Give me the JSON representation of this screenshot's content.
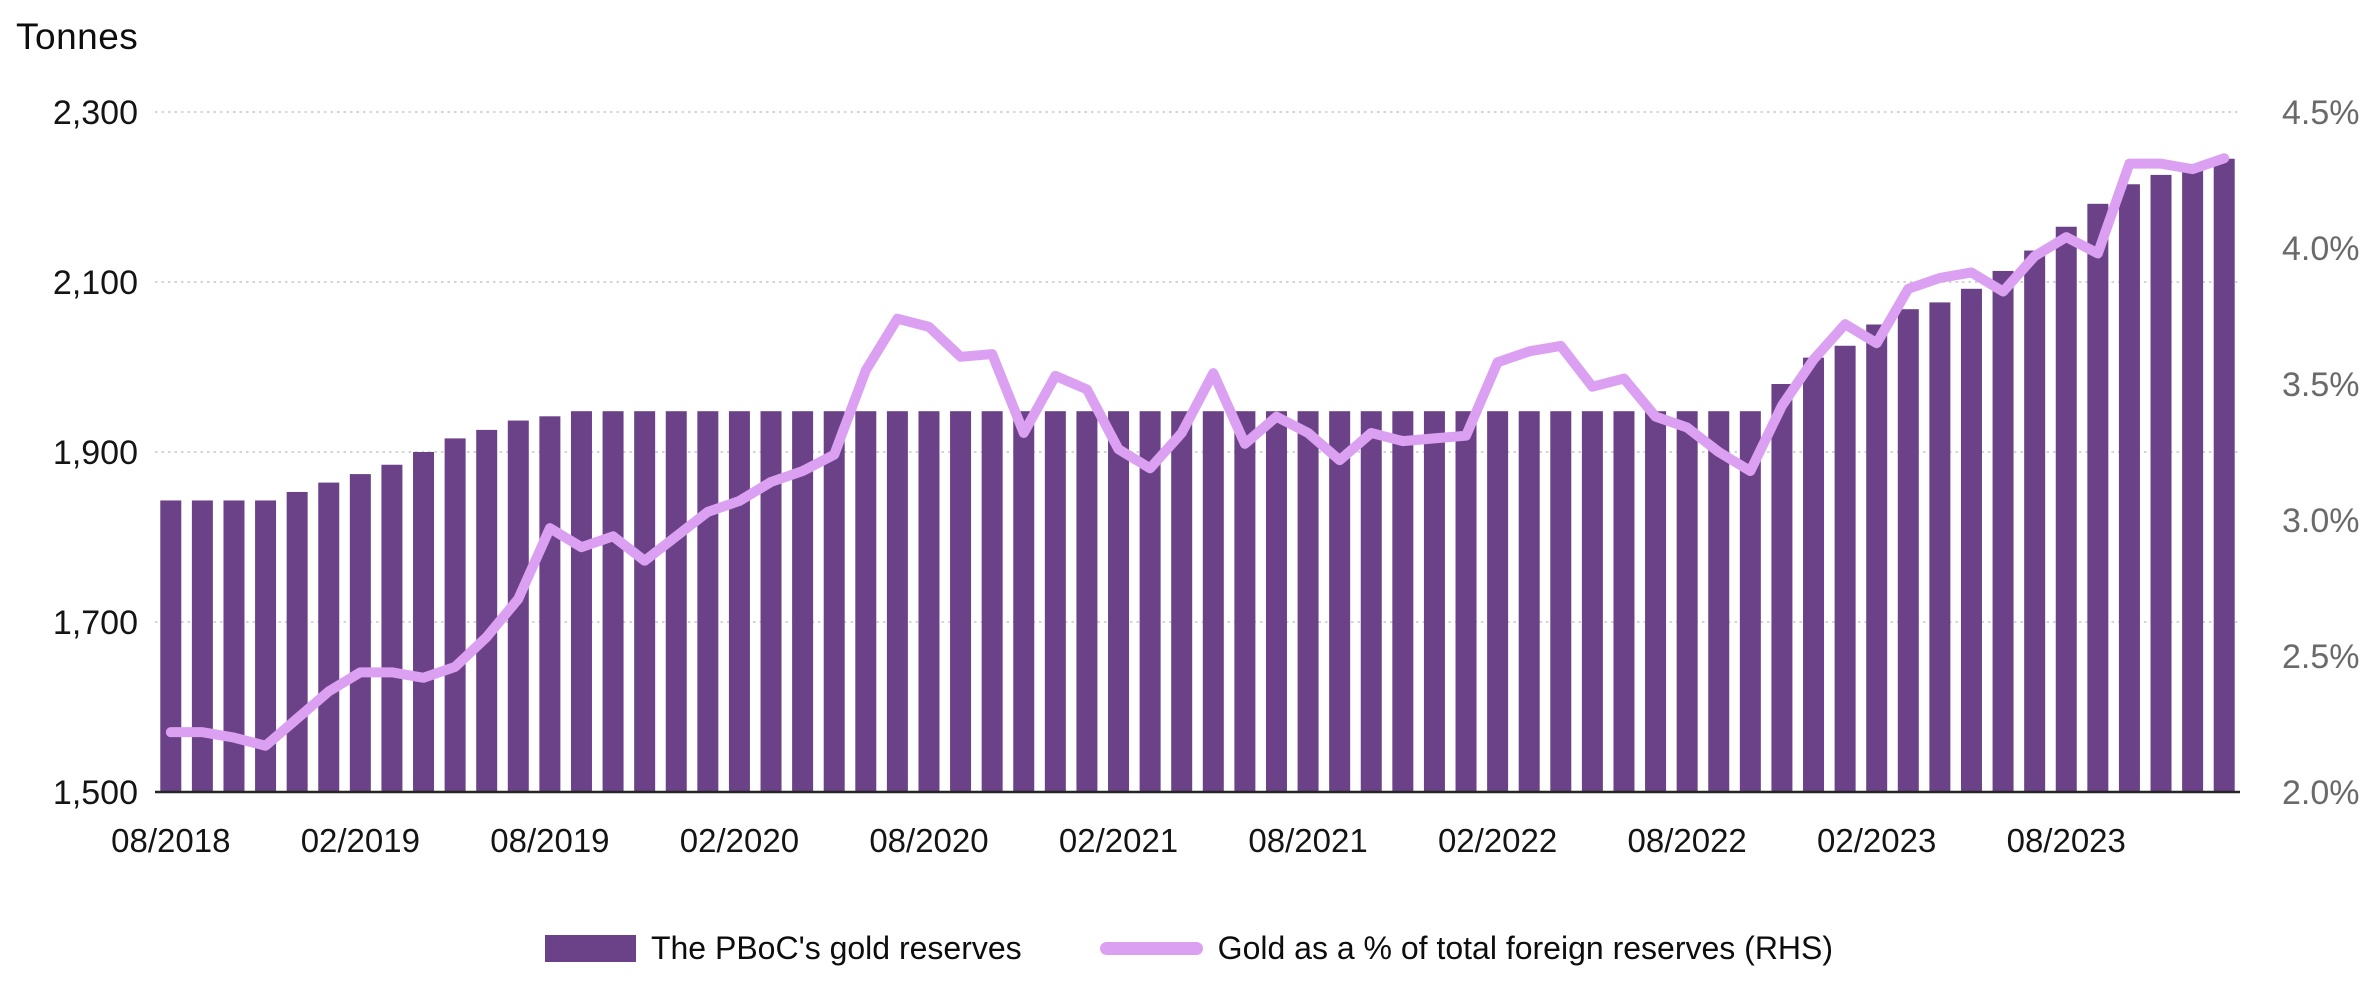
{
  "title": {
    "unit_label": "Tonnes"
  },
  "colors": {
    "bar": "#6B4287",
    "line": "#DCA0F2",
    "gridline": "#C6C6C6",
    "axis_baseline": "#262626",
    "left_tick_text": "#141414",
    "right_tick_text": "#6A6A6A",
    "x_tick_text": "#141414"
  },
  "chart_data": {
    "type": "combo-bar-line",
    "grid": "horizontal-dashed",
    "legend_position": "bottom",
    "categories": [
      "08/2018",
      "09/2018",
      "10/2018",
      "11/2018",
      "12/2018",
      "01/2019",
      "02/2019",
      "03/2019",
      "04/2019",
      "05/2019",
      "06/2019",
      "07/2019",
      "08/2019",
      "09/2019",
      "10/2019",
      "11/2019",
      "12/2019",
      "01/2020",
      "02/2020",
      "03/2020",
      "04/2020",
      "05/2020",
      "06/2020",
      "07/2020",
      "08/2020",
      "09/2020",
      "10/2020",
      "11/2020",
      "12/2020",
      "01/2021",
      "02/2021",
      "03/2021",
      "04/2021",
      "05/2021",
      "06/2021",
      "07/2021",
      "08/2021",
      "09/2021",
      "10/2021",
      "11/2021",
      "12/2021",
      "01/2022",
      "02/2022",
      "03/2022",
      "04/2022",
      "05/2022",
      "06/2022",
      "07/2022",
      "08/2022",
      "09/2022",
      "10/2022",
      "11/2022",
      "12/2022",
      "01/2023",
      "02/2023",
      "03/2023",
      "04/2023",
      "05/2023",
      "06/2023",
      "07/2023",
      "08/2023",
      "09/2023",
      "10/2023",
      "11/2023",
      "12/2023",
      "01/2024"
    ],
    "series": [
      {
        "name": "The PBoC's gold reserves",
        "type": "bar",
        "axis": "left",
        "values": [
          1843,
          1843,
          1843,
          1843,
          1853,
          1864,
          1874,
          1885,
          1900,
          1916,
          1926,
          1937,
          1942,
          1948,
          1948,
          1948,
          1948,
          1948,
          1948,
          1948,
          1948,
          1948,
          1948,
          1948,
          1948,
          1948,
          1948,
          1948,
          1948,
          1948,
          1948,
          1948,
          1948,
          1948,
          1948,
          1948,
          1948,
          1948,
          1948,
          1948,
          1948,
          1948,
          1948,
          1948,
          1948,
          1948,
          1948,
          1948,
          1948,
          1948,
          1948,
          1980,
          2011,
          2025,
          2050,
          2068,
          2076,
          2092,
          2113,
          2137,
          2165,
          2192,
          2215,
          2226,
          2235,
          2245
        ]
      },
      {
        "name": "Gold as a % of total foreign reserves (RHS)",
        "type": "line",
        "axis": "right",
        "values": [
          2.22,
          2.22,
          2.2,
          2.17,
          2.27,
          2.37,
          2.44,
          2.44,
          2.42,
          2.46,
          2.57,
          2.71,
          2.97,
          2.9,
          2.94,
          2.85,
          2.94,
          3.03,
          3.07,
          3.14,
          3.18,
          3.24,
          3.55,
          3.74,
          3.71,
          3.6,
          3.61,
          3.32,
          3.53,
          3.48,
          3.26,
          3.19,
          3.32,
          3.54,
          3.28,
          3.38,
          3.32,
          3.22,
          3.32,
          3.29,
          3.3,
          3.31,
          3.58,
          3.62,
          3.64,
          3.49,
          3.52,
          3.38,
          3.34,
          3.25,
          3.18,
          3.42,
          3.59,
          3.72,
          3.65,
          3.85,
          3.89,
          3.91,
          3.84,
          3.97,
          4.04,
          3.98,
          4.31,
          4.31,
          4.29,
          4.33
        ]
      }
    ],
    "left_axis": {
      "title": "Tonnes",
      "min": 1500,
      "max": 2300,
      "tick_values": [
        1500,
        1700,
        1900,
        2100,
        2300
      ],
      "tick_labels": [
        "1,500",
        "1,700",
        "1,900",
        "2,100",
        "2,300"
      ]
    },
    "right_axis": {
      "min": 2.0,
      "max": 4.5,
      "tick_values": [
        2.0,
        2.5,
        3.0,
        3.5,
        4.0,
        4.5
      ],
      "tick_labels": [
        "2.0%",
        "2.5%",
        "3.0%",
        "3.5%",
        "4.0%",
        "4.5%"
      ]
    },
    "x_axis": {
      "tick_label_every_n": 6,
      "tick_labels": [
        "08/2018",
        "02/2019",
        "08/2019",
        "02/2020",
        "08/2020",
        "02/2021",
        "08/2021",
        "02/2022",
        "08/2022",
        "02/2023",
        "08/2023"
      ]
    }
  }
}
